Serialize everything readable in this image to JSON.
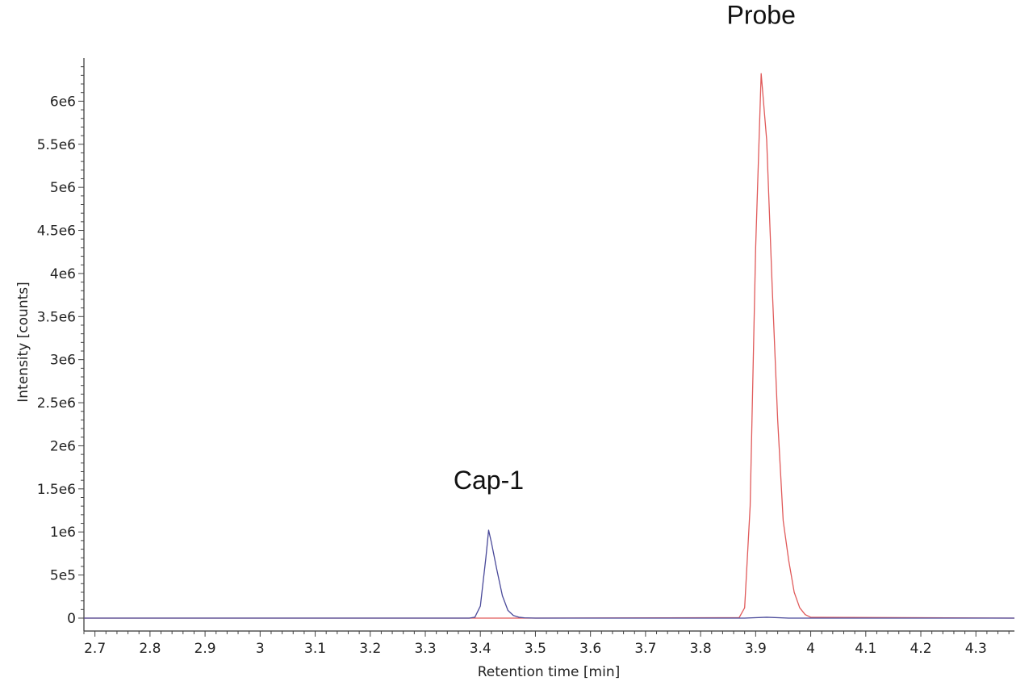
{
  "chart_data": {
    "type": "line",
    "xlabel": "Retention time [min]",
    "ylabel": "Intensity [counts]",
    "xlim": [
      2.68,
      4.37
    ],
    "ylim": [
      -150000,
      6500000
    ],
    "x_ticks": [
      2.7,
      2.8,
      2.9,
      3,
      3.1,
      3.2,
      3.3,
      3.4,
      3.5,
      3.6,
      3.7,
      3.8,
      3.9,
      4,
      4.1,
      4.2,
      4.3
    ],
    "x_tick_labels": [
      "2.7",
      "2.8",
      "2.9",
      "3",
      "3.1",
      "3.2",
      "3.3",
      "3.4",
      "3.5",
      "3.6",
      "3.7",
      "3.8",
      "3.9",
      "4",
      "4.1",
      "4.2",
      "4.3"
    ],
    "y_ticks": [
      0,
      500000,
      1000000,
      1500000,
      2000000,
      2500000,
      3000000,
      3500000,
      4000000,
      4500000,
      5000000,
      5500000,
      6000000
    ],
    "y_tick_labels": [
      "0",
      "5e5",
      "1e6",
      "1.5e6",
      "2e6",
      "2.5e6",
      "3e6",
      "3.5e6",
      "4e6",
      "4.5e6",
      "5e6",
      "5.5e6",
      "6e6"
    ],
    "grid": false,
    "series": [
      {
        "color": "#e05a5a",
        "x": [
          2.68,
          3.38,
          3.4,
          3.42,
          3.44,
          3.46,
          3.48,
          3.87,
          3.88,
          3.89,
          3.9,
          3.91,
          3.92,
          3.93,
          3.94,
          3.95,
          3.96,
          3.97,
          3.98,
          3.99,
          4.0,
          4.37
        ],
        "y": [
          0,
          0,
          0,
          0,
          0,
          0,
          0,
          5000,
          120000,
          1300000,
          4300000,
          6320000,
          5550000,
          3850000,
          2300000,
          1130000,
          670000,
          300000,
          120000,
          40000,
          10000,
          0
        ]
      },
      {
        "color": "#4a4a9a",
        "x": [
          2.68,
          3.38,
          3.39,
          3.4,
          3.41,
          3.415,
          3.42,
          3.43,
          3.44,
          3.45,
          3.46,
          3.47,
          3.48,
          3.5,
          3.88,
          3.92,
          3.96,
          4.37
        ],
        "y": [
          0,
          0,
          10000,
          140000,
          700000,
          1020000,
          880000,
          560000,
          260000,
          90000,
          30000,
          10000,
          3000,
          0,
          0,
          10000,
          0,
          0
        ]
      }
    ],
    "annotations": [
      {
        "text": "Cap-1",
        "x": 3.415,
        "y": 1500000
      },
      {
        "text": "Probe",
        "x": 3.91,
        "y": 6900000
      }
    ]
  }
}
